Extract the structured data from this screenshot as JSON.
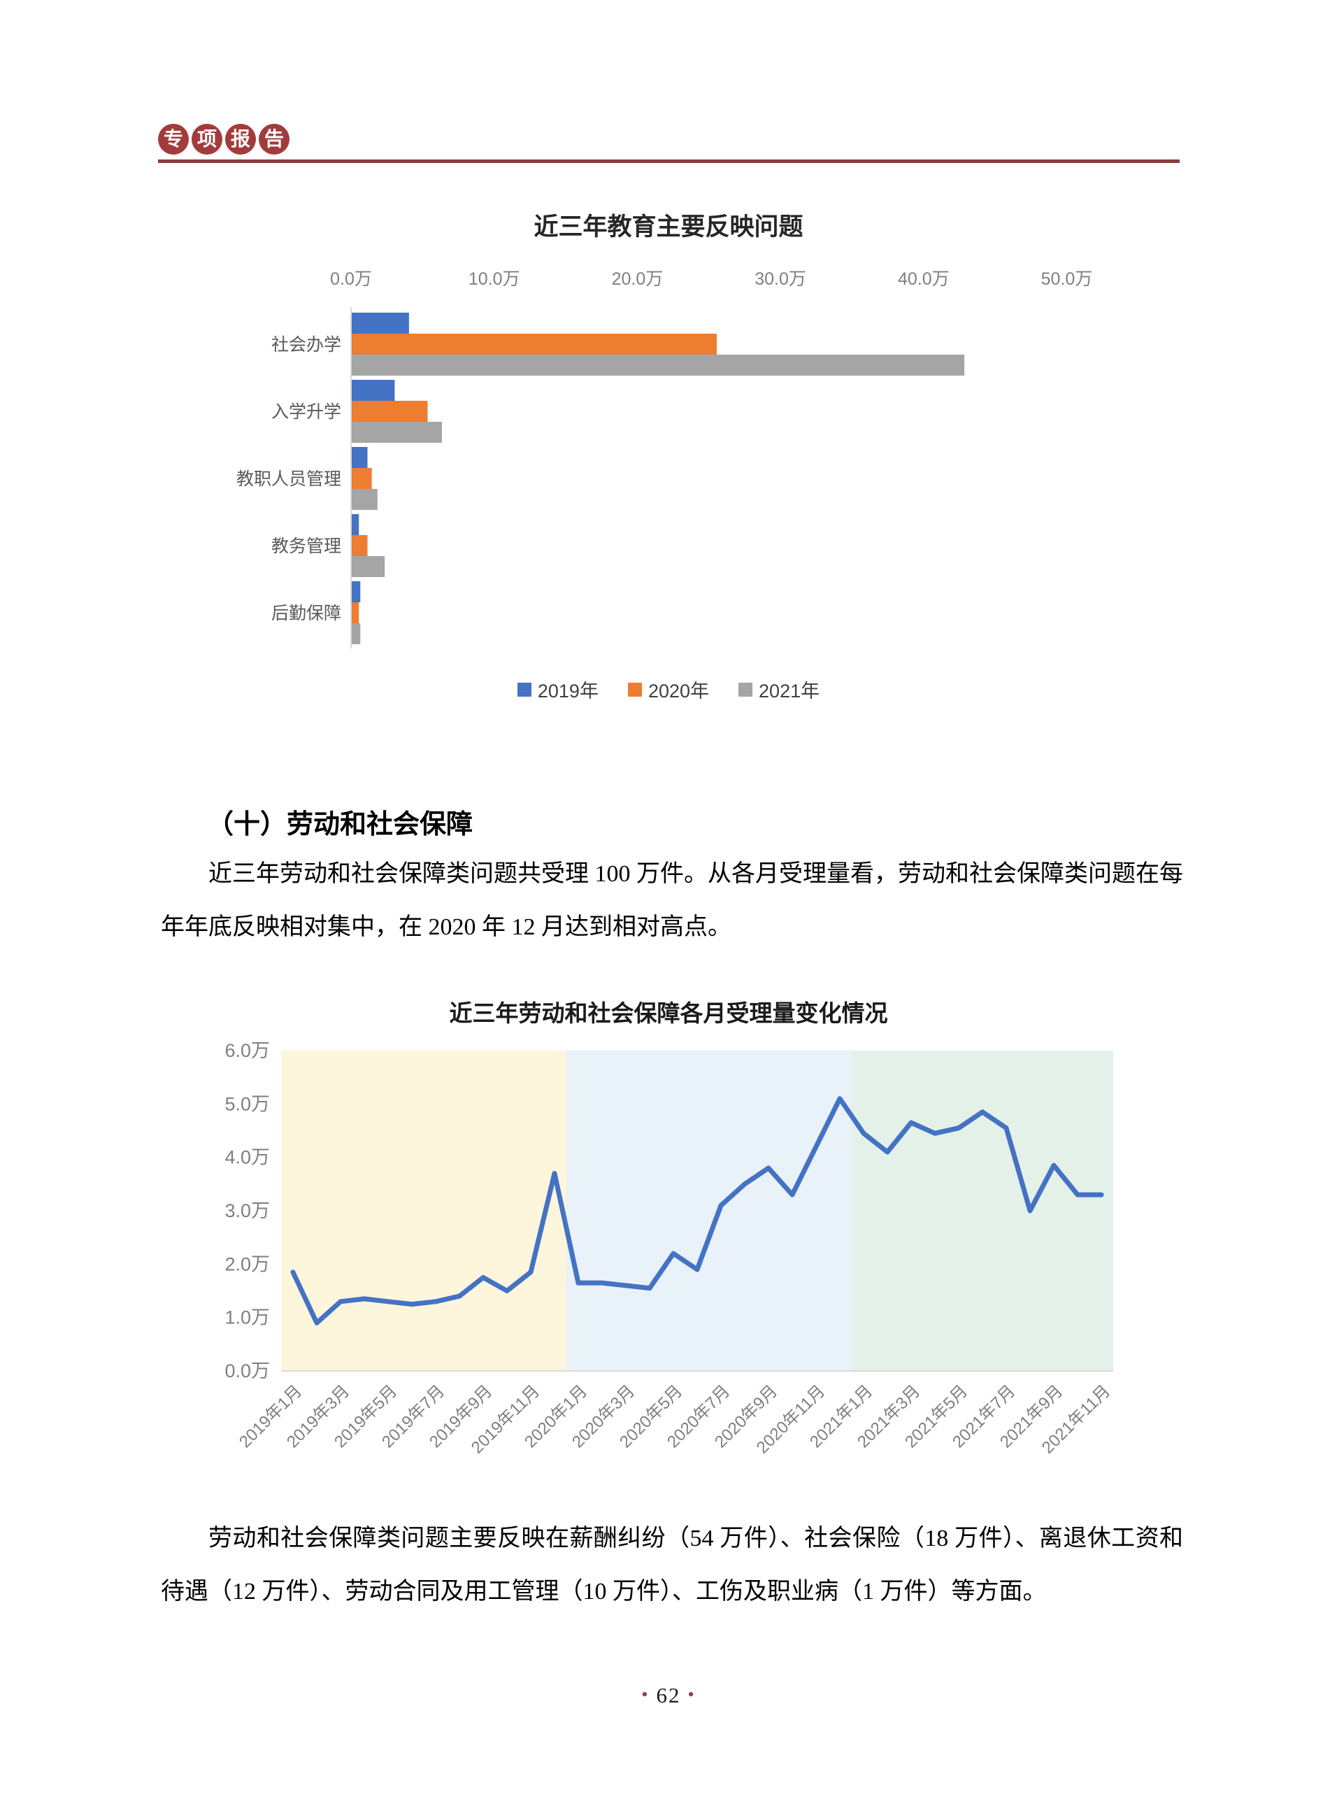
{
  "header": {
    "badge_chars": [
      "专",
      "项",
      "报",
      "告"
    ],
    "badge_color": "#A23C3C",
    "rule_color": "#8C3A3A"
  },
  "section": {
    "heading": "（十）劳动和社会保障",
    "para1": "近三年劳动和社会保障类问题共受理 100 万件。从各月受理量看，劳动和社会保障类问题在每年年底反映相对集中，在 2020 年 12 月达到相对高点。",
    "para2": "劳动和社会保障类问题主要反映在薪酬纠纷（54 万件）、社会保险（18 万件）、离退休工资和待遇（12 万件）、劳动合同及用工管理（10 万件）、工伤及职业病（1 万件）等方面。"
  },
  "footer": {
    "dot": "•",
    "page_number": "62",
    "dot_color": "#A03B3B"
  },
  "chart_data": [
    {
      "type": "bar",
      "orientation": "horizontal",
      "title": "近三年教育主要反映问题",
      "categories": [
        "社会办学",
        "入学升学",
        "教职人员管理",
        "教务管理",
        "后勤保障"
      ],
      "series": [
        {
          "name": "2019年",
          "color": "#4472C4",
          "values": [
            4.0,
            3.0,
            1.1,
            0.5,
            0.6
          ]
        },
        {
          "name": "2020年",
          "color": "#ED7D31",
          "values": [
            25.5,
            5.3,
            1.4,
            1.1,
            0.5
          ]
        },
        {
          "name": "2021年",
          "color": "#A5A5A5",
          "values": [
            42.8,
            6.3,
            1.8,
            2.3,
            0.6
          ]
        }
      ],
      "x_ticks": [
        "0.0万",
        "10.0万",
        "20.0万",
        "30.0万",
        "40.0万",
        "50.0万"
      ],
      "xlim": [
        0,
        50
      ],
      "unit": "万",
      "grid": false,
      "legend_position": "bottom",
      "axis_color": "#D9D9D9",
      "tick_label_color": "#7F7F7F",
      "category_label_color": "#595959"
    },
    {
      "type": "line",
      "title": "近三年劳动和社会保障各月受理量变化情况",
      "x": [
        "2019年1月",
        "2019年2月",
        "2019年3月",
        "2019年4月",
        "2019年5月",
        "2019年6月",
        "2019年7月",
        "2019年8月",
        "2019年9月",
        "2019年10月",
        "2019年11月",
        "2019年12月",
        "2020年1月",
        "2020年2月",
        "2020年3月",
        "2020年4月",
        "2020年5月",
        "2020年6月",
        "2020年7月",
        "2020年8月",
        "2020年9月",
        "2020年10月",
        "2020年11月",
        "2020年12月",
        "2021年1月",
        "2021年2月",
        "2021年3月",
        "2021年4月",
        "2021年5月",
        "2021年6月",
        "2021年7月",
        "2021年8月",
        "2021年9月",
        "2021年10月",
        "2021年11月"
      ],
      "values": [
        1.85,
        0.9,
        1.3,
        1.35,
        1.3,
        1.25,
        1.3,
        1.4,
        1.75,
        1.5,
        1.85,
        3.7,
        1.65,
        1.65,
        1.6,
        1.55,
        2.2,
        1.9,
        3.1,
        3.5,
        3.8,
        3.3,
        4.2,
        5.1,
        4.45,
        4.1,
        4.65,
        4.45,
        4.55,
        4.85,
        4.55,
        3.0,
        3.85,
        3.3,
        3.3
      ],
      "x_tick_every": 2,
      "y_ticks": [
        "0.0万",
        "1.0万",
        "2.0万",
        "3.0万",
        "4.0万",
        "5.0万",
        "6.0万"
      ],
      "ylim": [
        0,
        6
      ],
      "unit": "万",
      "grid": false,
      "line_color": "#4472C4",
      "axis_color": "#D9D9D9",
      "tick_label_color": "#7F7F7F",
      "bands": [
        {
          "label": "2019",
          "color": "#FDF5DC",
          "from": 0,
          "to": 12
        },
        {
          "label": "2020",
          "color": "#E9F1F9",
          "from": 12,
          "to": 24
        },
        {
          "label": "2021",
          "color": "#E4F1E9",
          "from": 24,
          "to": 35
        }
      ]
    }
  ]
}
